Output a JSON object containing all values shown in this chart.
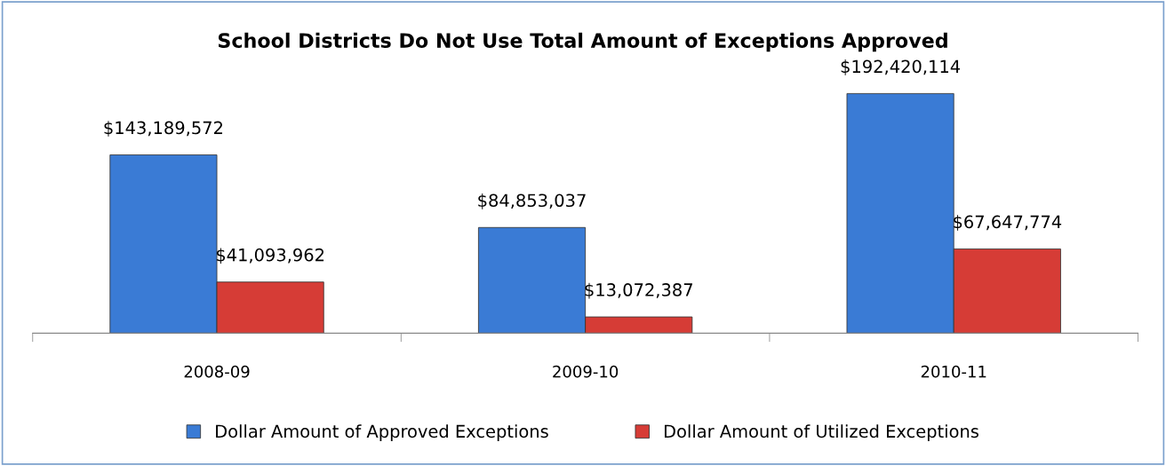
{
  "chart_data": {
    "type": "bar",
    "title": "School Districts Do Not Use Total Amount of Exceptions Approved",
    "categories": [
      "2008-09",
      "2009-10",
      "2010-11"
    ],
    "series": [
      {
        "name": "Dollar Amount of Approved Exceptions",
        "color": "#3a7bd5",
        "values": [
          143189572,
          84853037,
          192420114
        ],
        "value_labels": [
          "$143,189,572",
          "$84,853,037",
          "$192,420,114"
        ]
      },
      {
        "name": "Dollar Amount of Utilized Exceptions",
        "color": "#d63c36",
        "values": [
          41093962,
          13072387,
          67647774
        ],
        "value_labels": [
          "$41,093,962",
          "$13,072,387",
          "$67,647,774"
        ]
      }
    ],
    "grid": false,
    "legend": "bottom",
    "tick_labels": "x"
  }
}
